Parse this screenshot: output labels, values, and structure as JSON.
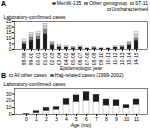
{
  "chart_data": [
    {
      "type": "bar",
      "stacked": true,
      "title": "A",
      "categories": [
        "98-99",
        "99-00",
        "00-01",
        "01-02",
        "02-03",
        "03-04",
        "04-05",
        "05-06",
        "06-07",
        "07-08",
        "08-09",
        "09-10",
        "10-11",
        "11-12",
        "12-13",
        "13-14",
        "14-15"
      ],
      "series": [
        {
          "name": "MenW-135",
          "color": "#1a1a1a",
          "values": [
            5,
            8,
            9,
            14,
            4,
            2,
            2,
            1,
            2,
            1,
            1,
            1,
            1,
            2,
            2,
            4,
            8
          ]
        },
        {
          "name": "Other genogroup",
          "color": "#808080",
          "values": [
            1,
            3,
            3,
            4,
            1,
            1,
            0,
            1,
            0,
            0,
            1,
            0,
            0,
            0,
            1,
            1,
            2
          ]
        },
        {
          "name": "ST-11",
          "color": "#d3d3d3",
          "values": [
            1,
            2,
            2,
            3,
            1,
            0,
            1,
            0,
            0,
            0,
            0,
            0,
            0,
            0,
            0,
            1,
            3
          ]
        },
        {
          "name": "Uncharacterised",
          "color": "#f0f0f0",
          "values": [
            2,
            2,
            2,
            2,
            1,
            1,
            0,
            0,
            1,
            0,
            0,
            0,
            0,
            1,
            0,
            1,
            3
          ]
        }
      ],
      "xlabel": "Epidemiologic year",
      "ylabel": "Laboratory-confirmed cases",
      "ylim": [
        0,
        25
      ],
      "yticks": [
        0,
        5,
        10,
        15,
        20,
        25
      ],
      "grid": false,
      "legend": "upper right"
    },
    {
      "type": "bar",
      "stacked": true,
      "title": "B",
      "categories": [
        "0",
        "1",
        "2",
        "3",
        "4",
        "5",
        "6",
        "7",
        "8",
        "9",
        "10",
        "11"
      ],
      "series": [
        {
          "name": "All other cases",
          "color": "#ffffff",
          "values": [
            0,
            2,
            5,
            7,
            14,
            18,
            20,
            18,
            13,
            12,
            9,
            14
          ]
        },
        {
          "name": "Hajj-related cases (1999-2002)",
          "color": "#1a1a1a",
          "values": [
            1,
            3,
            5,
            4,
            9,
            10,
            13,
            11,
            9,
            9,
            5,
            8
          ]
        }
      ],
      "xlabel": "Age (mo)",
      "ylabel": "Laboratory-confirmed cases",
      "ylim": [
        0,
        38
      ],
      "yticks": [
        0,
        10,
        20,
        30
      ],
      "grid": false,
      "legend": "upper left"
    }
  ]
}
